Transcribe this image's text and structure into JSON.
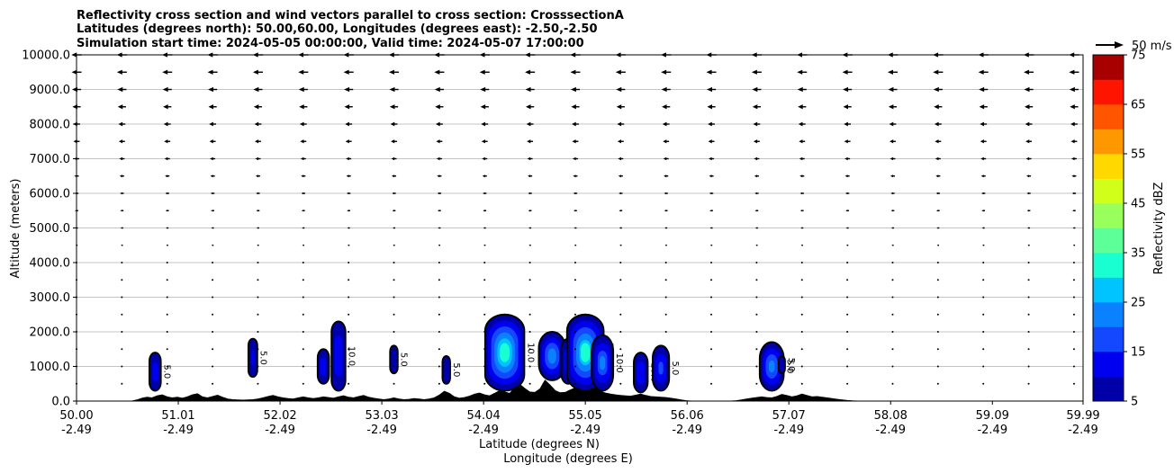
{
  "chart_data": {
    "type": "contourf+quiver",
    "title_lines": [
      "Reflectivity cross section and wind vectors parallel to cross section: CrosssectionA",
      "Latitudes (degrees north): 50.00,60.00, Longitudes (degrees east): -2.50,-2.50",
      "Simulation start time: 2024-05-05 00:00:00, Valid time: 2024-05-07 17:00:00"
    ],
    "xlabel": "Latitude (degrees N)",
    "xlabel2": "Longitude (degrees E)",
    "ylabel": "Altitude (meters)",
    "xlim": [
      50.0,
      59.99
    ],
    "ylim": [
      0,
      10000
    ],
    "x_ticks": [
      {
        "value": 50.0,
        "lat": "50.00",
        "lon": "-2.49"
      },
      {
        "value": 51.01,
        "lat": "51.01",
        "lon": "-2.49"
      },
      {
        "value": 52.02,
        "lat": "52.02",
        "lon": "-2.49"
      },
      {
        "value": 53.03,
        "lat": "53.03",
        "lon": "-2.49"
      },
      {
        "value": 54.04,
        "lat": "54.04",
        "lon": "-2.49"
      },
      {
        "value": 55.05,
        "lat": "55.05",
        "lon": "-2.49"
      },
      {
        "value": 56.06,
        "lat": "56.06",
        "lon": "-2.49"
      },
      {
        "value": 57.07,
        "lat": "57.07",
        "lon": "-2.49"
      },
      {
        "value": 58.08,
        "lat": "58.08",
        "lon": "-2.49"
      },
      {
        "value": 59.09,
        "lat": "59.09",
        "lon": "-2.49"
      },
      {
        "value": 59.99,
        "lat": "59.99",
        "lon": "-2.49"
      }
    ],
    "y_ticks": [
      {
        "value": 0,
        "label": "0.0"
      },
      {
        "value": 1000,
        "label": "1000.0"
      },
      {
        "value": 2000,
        "label": "2000.0"
      },
      {
        "value": 3000,
        "label": "3000.0"
      },
      {
        "value": 4000,
        "label": "4000.0"
      },
      {
        "value": 5000,
        "label": "5000.0"
      },
      {
        "value": 6000,
        "label": "6000.0"
      },
      {
        "value": 7000,
        "label": "7000.0"
      },
      {
        "value": 8000,
        "label": "8000.0"
      },
      {
        "value": 9000,
        "label": "9000.0"
      },
      {
        "value": 10000,
        "label": "10000.0"
      }
    ],
    "grid": "horizontal",
    "quiver_key": {
      "label": "50 m/s",
      "speed": 50
    },
    "colorbar": {
      "label": "Reflectivity dBZ",
      "min": 5,
      "max": 75,
      "tick_values": [
        5,
        15,
        25,
        35,
        45,
        55,
        65,
        75
      ],
      "tick_labels": [
        "5",
        "15",
        "25",
        "35",
        "45",
        "55",
        "65",
        "75"
      ],
      "levels": [
        5,
        10,
        15,
        20,
        25,
        30,
        35,
        40,
        45,
        50,
        55,
        60,
        65,
        70,
        75
      ],
      "colors": [
        "#0000a8",
        "#0000f0",
        "#1448ff",
        "#0a82ff",
        "#00c4ff",
        "#1affd2",
        "#5cff98",
        "#98ff5c",
        "#d2ff1a",
        "#ffd800",
        "#ff9800",
        "#ff5400",
        "#ff1400",
        "#a80000"
      ]
    },
    "terrain": [
      {
        "x": 50.55,
        "z": 0
      },
      {
        "x": 50.6,
        "z": 30
      },
      {
        "x": 50.65,
        "z": 80
      },
      {
        "x": 50.7,
        "z": 110
      },
      {
        "x": 50.75,
        "z": 90
      },
      {
        "x": 50.8,
        "z": 150
      },
      {
        "x": 50.85,
        "z": 180
      },
      {
        "x": 50.9,
        "z": 120
      },
      {
        "x": 50.95,
        "z": 90
      },
      {
        "x": 51.0,
        "z": 110
      },
      {
        "x": 51.05,
        "z": 80
      },
      {
        "x": 51.1,
        "z": 120
      },
      {
        "x": 51.15,
        "z": 180
      },
      {
        "x": 51.2,
        "z": 210
      },
      {
        "x": 51.25,
        "z": 120
      },
      {
        "x": 51.3,
        "z": 90
      },
      {
        "x": 51.35,
        "z": 130
      },
      {
        "x": 51.4,
        "z": 170
      },
      {
        "x": 51.45,
        "z": 110
      },
      {
        "x": 51.5,
        "z": 60
      },
      {
        "x": 51.55,
        "z": 40
      },
      {
        "x": 51.6,
        "z": 30
      },
      {
        "x": 51.65,
        "z": 25
      },
      {
        "x": 51.7,
        "z": 30
      },
      {
        "x": 51.75,
        "z": 40
      },
      {
        "x": 51.8,
        "z": 60
      },
      {
        "x": 51.85,
        "z": 90
      },
      {
        "x": 51.9,
        "z": 130
      },
      {
        "x": 51.95,
        "z": 160
      },
      {
        "x": 52.0,
        "z": 120
      },
      {
        "x": 52.05,
        "z": 90
      },
      {
        "x": 52.1,
        "z": 70
      },
      {
        "x": 52.15,
        "z": 60
      },
      {
        "x": 52.2,
        "z": 90
      },
      {
        "x": 52.25,
        "z": 120
      },
      {
        "x": 52.3,
        "z": 90
      },
      {
        "x": 52.35,
        "z": 70
      },
      {
        "x": 52.4,
        "z": 90
      },
      {
        "x": 52.45,
        "z": 120
      },
      {
        "x": 52.5,
        "z": 100
      },
      {
        "x": 52.55,
        "z": 80
      },
      {
        "x": 52.6,
        "z": 120
      },
      {
        "x": 52.65,
        "z": 150
      },
      {
        "x": 52.7,
        "z": 110
      },
      {
        "x": 52.75,
        "z": 90
      },
      {
        "x": 52.8,
        "z": 130
      },
      {
        "x": 52.85,
        "z": 160
      },
      {
        "x": 52.9,
        "z": 110
      },
      {
        "x": 52.95,
        "z": 80
      },
      {
        "x": 53.0,
        "z": 60
      },
      {
        "x": 53.05,
        "z": 40
      },
      {
        "x": 53.1,
        "z": 60
      },
      {
        "x": 53.15,
        "z": 90
      },
      {
        "x": 53.2,
        "z": 60
      },
      {
        "x": 53.25,
        "z": 40
      },
      {
        "x": 53.3,
        "z": 50
      },
      {
        "x": 53.35,
        "z": 70
      },
      {
        "x": 53.4,
        "z": 60
      },
      {
        "x": 53.45,
        "z": 40
      },
      {
        "x": 53.5,
        "z": 60
      },
      {
        "x": 53.55,
        "z": 90
      },
      {
        "x": 53.6,
        "z": 170
      },
      {
        "x": 53.65,
        "z": 280
      },
      {
        "x": 53.7,
        "z": 220
      },
      {
        "x": 53.75,
        "z": 120
      },
      {
        "x": 53.8,
        "z": 80
      },
      {
        "x": 53.85,
        "z": 100
      },
      {
        "x": 53.9,
        "z": 140
      },
      {
        "x": 53.95,
        "z": 200
      },
      {
        "x": 54.0,
        "z": 230
      },
      {
        "x": 54.05,
        "z": 180
      },
      {
        "x": 54.1,
        "z": 150
      },
      {
        "x": 54.15,
        "z": 220
      },
      {
        "x": 54.2,
        "z": 300
      },
      {
        "x": 54.25,
        "z": 260
      },
      {
        "x": 54.3,
        "z": 220
      },
      {
        "x": 54.35,
        "z": 380
      },
      {
        "x": 54.4,
        "z": 480
      },
      {
        "x": 54.45,
        "z": 360
      },
      {
        "x": 54.5,
        "z": 260
      },
      {
        "x": 54.55,
        "z": 250
      },
      {
        "x": 54.6,
        "z": 350
      },
      {
        "x": 54.65,
        "z": 600
      },
      {
        "x": 54.7,
        "z": 460
      },
      {
        "x": 54.75,
        "z": 300
      },
      {
        "x": 54.8,
        "z": 240
      },
      {
        "x": 54.85,
        "z": 250
      },
      {
        "x": 54.9,
        "z": 320
      },
      {
        "x": 54.95,
        "z": 380
      },
      {
        "x": 55.0,
        "z": 300
      },
      {
        "x": 55.05,
        "z": 270
      },
      {
        "x": 55.1,
        "z": 340
      },
      {
        "x": 55.15,
        "z": 380
      },
      {
        "x": 55.2,
        "z": 280
      },
      {
        "x": 55.25,
        "z": 230
      },
      {
        "x": 55.3,
        "z": 200
      },
      {
        "x": 55.35,
        "z": 180
      },
      {
        "x": 55.4,
        "z": 160
      },
      {
        "x": 55.45,
        "z": 150
      },
      {
        "x": 55.5,
        "z": 140
      },
      {
        "x": 55.55,
        "z": 170
      },
      {
        "x": 55.6,
        "z": 200
      },
      {
        "x": 55.65,
        "z": 160
      },
      {
        "x": 55.7,
        "z": 130
      },
      {
        "x": 55.75,
        "z": 120
      },
      {
        "x": 55.8,
        "z": 110
      },
      {
        "x": 55.85,
        "z": 100
      },
      {
        "x": 55.9,
        "z": 80
      },
      {
        "x": 55.95,
        "z": 60
      },
      {
        "x": 56.0,
        "z": 30
      },
      {
        "x": 56.05,
        "z": 10
      },
      {
        "x": 56.1,
        "z": 0
      },
      {
        "x": 56.5,
        "z": 0
      },
      {
        "x": 56.55,
        "z": 10
      },
      {
        "x": 56.6,
        "z": 30
      },
      {
        "x": 56.65,
        "z": 60
      },
      {
        "x": 56.7,
        "z": 80
      },
      {
        "x": 56.75,
        "z": 100
      },
      {
        "x": 56.8,
        "z": 120
      },
      {
        "x": 56.85,
        "z": 100
      },
      {
        "x": 56.9,
        "z": 90
      },
      {
        "x": 56.95,
        "z": 130
      },
      {
        "x": 57.0,
        "z": 190
      },
      {
        "x": 57.05,
        "z": 160
      },
      {
        "x": 57.1,
        "z": 120
      },
      {
        "x": 57.15,
        "z": 150
      },
      {
        "x": 57.2,
        "z": 200
      },
      {
        "x": 57.25,
        "z": 160
      },
      {
        "x": 57.3,
        "z": 120
      },
      {
        "x": 57.35,
        "z": 130
      },
      {
        "x": 57.4,
        "z": 110
      },
      {
        "x": 57.45,
        "z": 90
      },
      {
        "x": 57.5,
        "z": 70
      },
      {
        "x": 57.55,
        "z": 50
      },
      {
        "x": 57.6,
        "z": 30
      },
      {
        "x": 57.65,
        "z": 15
      },
      {
        "x": 57.7,
        "z": 5
      },
      {
        "x": 57.75,
        "z": 0
      }
    ],
    "cells": [
      {
        "x": 50.78,
        "z_bottom": 300,
        "z_top": 1400,
        "max_dbz": 12,
        "label": "5.0"
      },
      {
        "x": 51.75,
        "z_bottom": 700,
        "z_top": 1800,
        "max_dbz": 10,
        "label": "5.0"
      },
      {
        "x": 52.45,
        "z_bottom": 500,
        "z_top": 1500,
        "max_dbz": 12,
        "label": "5.0"
      },
      {
        "x": 52.6,
        "z_bottom": 300,
        "z_top": 2300,
        "max_dbz": 14,
        "label": "10.0"
      },
      {
        "x": 53.15,
        "z_bottom": 800,
        "z_top": 1600,
        "max_dbz": 9,
        "label": "5.0"
      },
      {
        "x": 53.67,
        "z_bottom": 500,
        "z_top": 1300,
        "max_dbz": 9,
        "label": "5.0"
      },
      {
        "x": 54.25,
        "z_bottom": 300,
        "z_top": 2500,
        "max_dbz": 34,
        "label": "10.0"
      },
      {
        "x": 54.72,
        "z_bottom": 600,
        "z_top": 2000,
        "max_dbz": 24,
        "label": "10.0"
      },
      {
        "x": 54.88,
        "z_bottom": 500,
        "z_top": 1800,
        "max_dbz": 14,
        "label": "5.0"
      },
      {
        "x": 55.05,
        "z_bottom": 300,
        "z_top": 2500,
        "max_dbz": 32,
        "label": "10.0"
      },
      {
        "x": 55.22,
        "z_bottom": 300,
        "z_top": 1900,
        "max_dbz": 20,
        "label": "10.0"
      },
      {
        "x": 55.6,
        "z_bottom": 250,
        "z_top": 1400,
        "max_dbz": 14,
        "label": "10.0"
      },
      {
        "x": 55.8,
        "z_bottom": 300,
        "z_top": 1600,
        "max_dbz": 16,
        "label": "5.0"
      },
      {
        "x": 56.9,
        "z_bottom": 300,
        "z_top": 1700,
        "max_dbz": 22,
        "label": "5.0"
      },
      {
        "x": 57.0,
        "z_bottom": 800,
        "z_top": 1300,
        "max_dbz": 8,
        "label": "5.0"
      }
    ],
    "wind_profile": [
      {
        "z": 500,
        "u": 0.6
      },
      {
        "z": 1000,
        "u": 0.8
      },
      {
        "z": 1500,
        "u": 1.0
      },
      {
        "z": 2000,
        "u": 1.3
      },
      {
        "z": 2500,
        "u": 1.5
      },
      {
        "z": 3000,
        "u": 2.0
      },
      {
        "z": 3500,
        "u": 2.5
      },
      {
        "z": 4000,
        "u": -3.5
      },
      {
        "z": 4500,
        "u": -5.0
      },
      {
        "z": 5000,
        "u": -6.5
      },
      {
        "z": 5500,
        "u": -8.0
      },
      {
        "z": 6000,
        "u": -9.5
      },
      {
        "z": 6500,
        "u": -11.0
      },
      {
        "z": 7000,
        "u": -13.0
      },
      {
        "z": 7500,
        "u": -15.0
      },
      {
        "z": 8000,
        "u": -17.0
      },
      {
        "z": 8500,
        "u": -20.0
      },
      {
        "z": 9000,
        "u": -22.0
      },
      {
        "z": 9500,
        "u": -24.0
      },
      {
        "z": 10000,
        "u": -25.0
      }
    ],
    "wind_columns_x": [
      50.0,
      50.45,
      50.9,
      51.35,
      51.8,
      52.25,
      52.7,
      53.15,
      53.6,
      54.05,
      54.5,
      54.95,
      55.4,
      55.85,
      56.3,
      56.75,
      57.2,
      57.65,
      58.1,
      58.55,
      59.0,
      59.45,
      59.9
    ]
  }
}
